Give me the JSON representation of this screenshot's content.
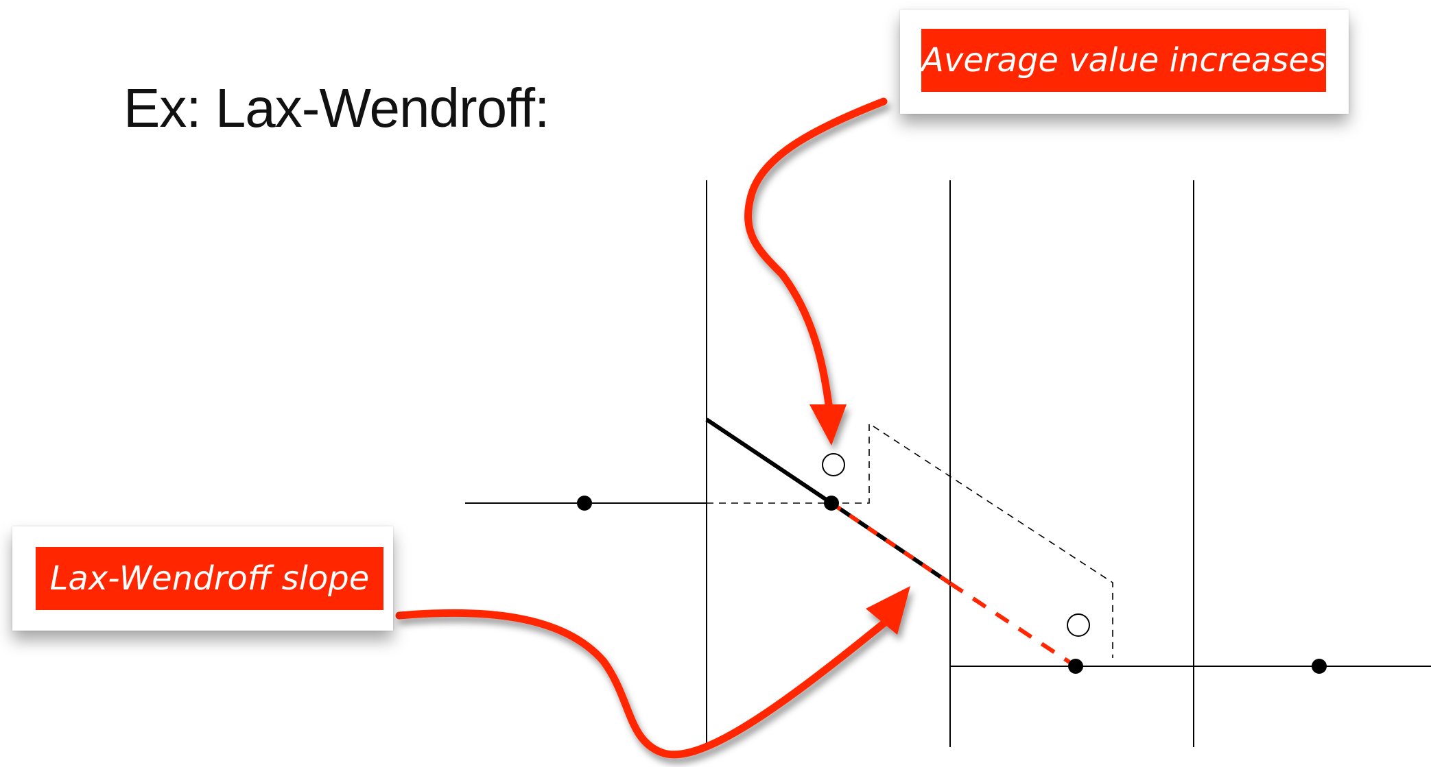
{
  "slide": {
    "title": "Ex: Lax-Wendroff:"
  },
  "callouts": {
    "top": "Average value increases",
    "bottom": "Lax-Wendroff slope"
  },
  "colors": {
    "accent": "#ff2600",
    "line": "#000000"
  }
}
